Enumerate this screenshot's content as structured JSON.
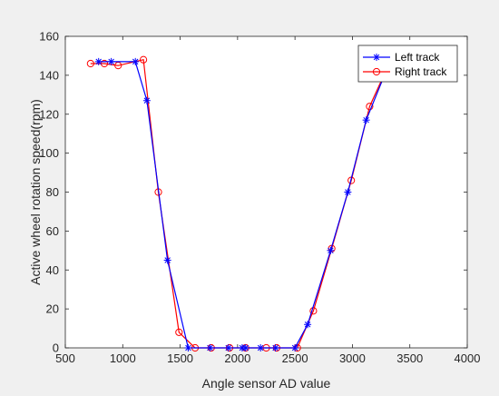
{
  "chart_data": {
    "type": "line",
    "title": "",
    "xlabel": "Angle sensor AD value",
    "ylabel": "Active wheel rotation speed(rpm)",
    "xlim": [
      500,
      4000
    ],
    "ylim": [
      0,
      160
    ],
    "xticks": [
      500,
      1000,
      1500,
      2000,
      2500,
      3000,
      3500,
      4000
    ],
    "yticks": [
      0,
      20,
      40,
      60,
      80,
      100,
      120,
      140,
      160
    ],
    "grid": false,
    "legend_position": "top-right",
    "series": [
      {
        "name": "Left track",
        "color": "#0000ff",
        "marker": "star",
        "x": [
          790,
          900,
          1110,
          1210,
          1390,
          1570,
          1760,
          1920,
          2040,
          2070,
          2200,
          2330,
          2500,
          2610,
          2810,
          2960,
          3120,
          3320
        ],
        "y": [
          147,
          147,
          147,
          127,
          45,
          0,
          0,
          0,
          0,
          0,
          0,
          0,
          0,
          12,
          50,
          80,
          117,
          146
        ]
      },
      {
        "name": "Right track",
        "color": "#ff0000",
        "marker": "circle",
        "x": [
          720,
          840,
          960,
          1180,
          1310,
          1490,
          1630,
          1770,
          1930,
          2070,
          2250,
          2340,
          2520,
          2660,
          2820,
          2990,
          3150,
          3320
        ],
        "y": [
          146,
          146,
          145,
          148,
          80,
          8,
          0,
          0,
          0,
          0,
          0,
          0,
          0,
          19,
          51,
          86,
          124,
          146
        ]
      }
    ]
  }
}
